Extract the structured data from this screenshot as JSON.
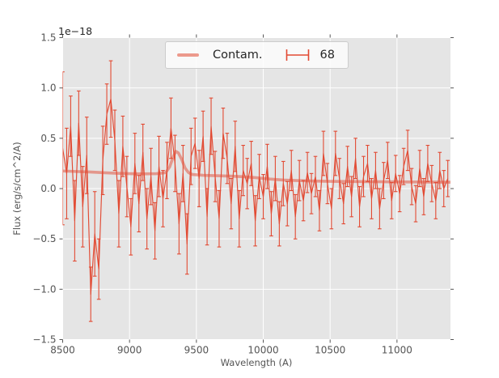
{
  "figure": {
    "background": "#ffffff",
    "axes_background": "#e5e5e5",
    "grid_color": "#ffffff",
    "tick_color": "#555555",
    "tick_label_color": "#555555",
    "axis_label_color": "#555555",
    "series_color": "#e24a33",
    "contam_color": "#e24a33",
    "contam_opacity": 0.5
  },
  "legend": {
    "contam_label": "Contam.",
    "series_label": "68"
  },
  "axes": {
    "xlabel": "Wavelength (A)",
    "ylabel": "Flux (erg/s/cm^2/A)",
    "offset_text": "1e−18",
    "x_ticks": [
      8500,
      9000,
      9500,
      10000,
      10500,
      11000
    ],
    "x_tick_labels": [
      "8500",
      "9000",
      "9500",
      "10000",
      "10500",
      "11000"
    ],
    "y_ticks": [
      1.5,
      1.0,
      0.5,
      0.0,
      -0.5,
      -1.0,
      -1.5
    ],
    "y_tick_labels": [
      "1.5",
      "1.0",
      "0.5",
      "0.0",
      "−0.5",
      "−1.0",
      "−1.5"
    ],
    "xlim": [
      8500,
      11400
    ],
    "ylim": [
      -1.5,
      1.5
    ]
  },
  "chart_data": {
    "type": "line",
    "title": "",
    "xlabel": "Wavelength (A)",
    "ylabel": "Flux (erg/s/cm^2/A)",
    "y_scale_factor": "1e-18",
    "xlim": [
      8500,
      11400
    ],
    "ylim": [
      -1.5,
      1.5
    ],
    "grid": true,
    "legend_position": "upper center",
    "series": [
      {
        "name": "Contam.",
        "type": "line",
        "x": [
          8500,
          8600,
          8700,
          8800,
          8900,
          9000,
          9100,
          9200,
          9270,
          9300,
          9325,
          9345,
          9365,
          9390,
          9415,
          9440,
          9470,
          9550,
          9650,
          9750,
          9850,
          9950,
          10050,
          10150,
          10250,
          10350,
          10500,
          10700,
          10900,
          11100,
          11250,
          11400
        ],
        "y": [
          0.175,
          0.17,
          0.165,
          0.158,
          0.152,
          0.148,
          0.146,
          0.148,
          0.158,
          0.215,
          0.31,
          0.37,
          0.355,
          0.29,
          0.205,
          0.16,
          0.14,
          0.132,
          0.128,
          0.124,
          0.118,
          0.108,
          0.095,
          0.085,
          0.08,
          0.076,
          0.072,
          0.07,
          0.068,
          0.066,
          0.065,
          0.064
        ]
      },
      {
        "name": "68",
        "type": "errorbar",
        "x": [
          8500,
          8530,
          8560,
          8590,
          8620,
          8650,
          8680,
          8710,
          8740,
          8770,
          8800,
          8830,
          8860,
          8890,
          8920,
          8950,
          8980,
          9010,
          9040,
          9070,
          9100,
          9130,
          9160,
          9190,
          9220,
          9250,
          9280,
          9310,
          9340,
          9370,
          9400,
          9430,
          9460,
          9490,
          9520,
          9550,
          9580,
          9610,
          9640,
          9670,
          9700,
          9730,
          9760,
          9790,
          9820,
          9850,
          9880,
          9910,
          9940,
          9970,
          10000,
          10030,
          10060,
          10090,
          10120,
          10150,
          10180,
          10210,
          10240,
          10270,
          10300,
          10330,
          10360,
          10390,
          10420,
          10450,
          10480,
          10510,
          10540,
          10570,
          10600,
          10630,
          10660,
          10690,
          10720,
          10750,
          10780,
          10810,
          10840,
          10870,
          10900,
          10930,
          10960,
          10990,
          11020,
          11050,
          11080,
          11110,
          11140,
          11170,
          11200,
          11230,
          11260,
          11290,
          11320,
          11350,
          11380
        ],
        "y": [
          0.4,
          0.15,
          0.62,
          -0.32,
          0.65,
          -0.18,
          0.33,
          -1.05,
          -0.45,
          -0.8,
          0.28,
          0.74,
          0.89,
          0.48,
          -0.25,
          0.42,
          0.02,
          -0.38,
          0.25,
          -0.15,
          0.36,
          -0.3,
          0.12,
          -0.42,
          0.22,
          -0.1,
          0.18,
          0.6,
          0.25,
          -0.35,
          0.15,
          -0.55,
          0.32,
          0.45,
          0.1,
          0.52,
          -0.28,
          0.62,
          0.12,
          -0.3,
          0.55,
          0.3,
          -0.15,
          0.42,
          -0.3,
          0.18,
          0.05,
          0.25,
          -0.32,
          0.12,
          -0.08,
          0.22,
          -0.25,
          0.1,
          -0.35,
          0.05,
          -0.15,
          0.18,
          -0.28,
          0.08,
          -0.12,
          0.16,
          -0.05,
          0.12,
          -0.22,
          0.35,
          0.05,
          -0.2,
          0.35,
          0.1,
          -0.15,
          0.22,
          -0.08,
          0.3,
          -0.18,
          0.12,
          0.25,
          -0.1,
          0.18,
          -0.2,
          0.08,
          0.28,
          -0.12,
          0.15,
          -0.05,
          0.22,
          0.38,
          0.02,
          -0.15,
          0.2,
          -0.08,
          0.25,
          0.05,
          -0.12,
          0.18,
          0.0,
          0.1
        ],
        "yerr": [
          0.76,
          0.45,
          0.3,
          0.4,
          0.32,
          0.4,
          0.38,
          0.27,
          0.42,
          0.3,
          0.34,
          0.3,
          0.38,
          0.3,
          0.33,
          0.3,
          0.3,
          0.28,
          0.3,
          0.28,
          0.28,
          0.3,
          0.28,
          0.28,
          0.3,
          0.28,
          0.28,
          0.3,
          0.28,
          0.3,
          0.28,
          0.3,
          0.28,
          0.25,
          0.28,
          0.25,
          0.28,
          0.28,
          0.25,
          0.28,
          0.25,
          0.25,
          0.25,
          0.25,
          0.28,
          0.25,
          0.25,
          0.22,
          0.25,
          0.22,
          0.22,
          0.22,
          0.22,
          0.22,
          0.22,
          0.22,
          0.22,
          0.2,
          0.22,
          0.2,
          0.2,
          0.2,
          0.2,
          0.2,
          0.2,
          0.22,
          0.2,
          0.2,
          0.22,
          0.2,
          0.2,
          0.2,
          0.2,
          0.2,
          0.2,
          0.2,
          0.18,
          0.2,
          0.18,
          0.2,
          0.18,
          0.18,
          0.18,
          0.18,
          0.18,
          0.18,
          0.2,
          0.18,
          0.18,
          0.18,
          0.18,
          0.18,
          0.18,
          0.18,
          0.18,
          0.18,
          0.18
        ]
      }
    ]
  }
}
